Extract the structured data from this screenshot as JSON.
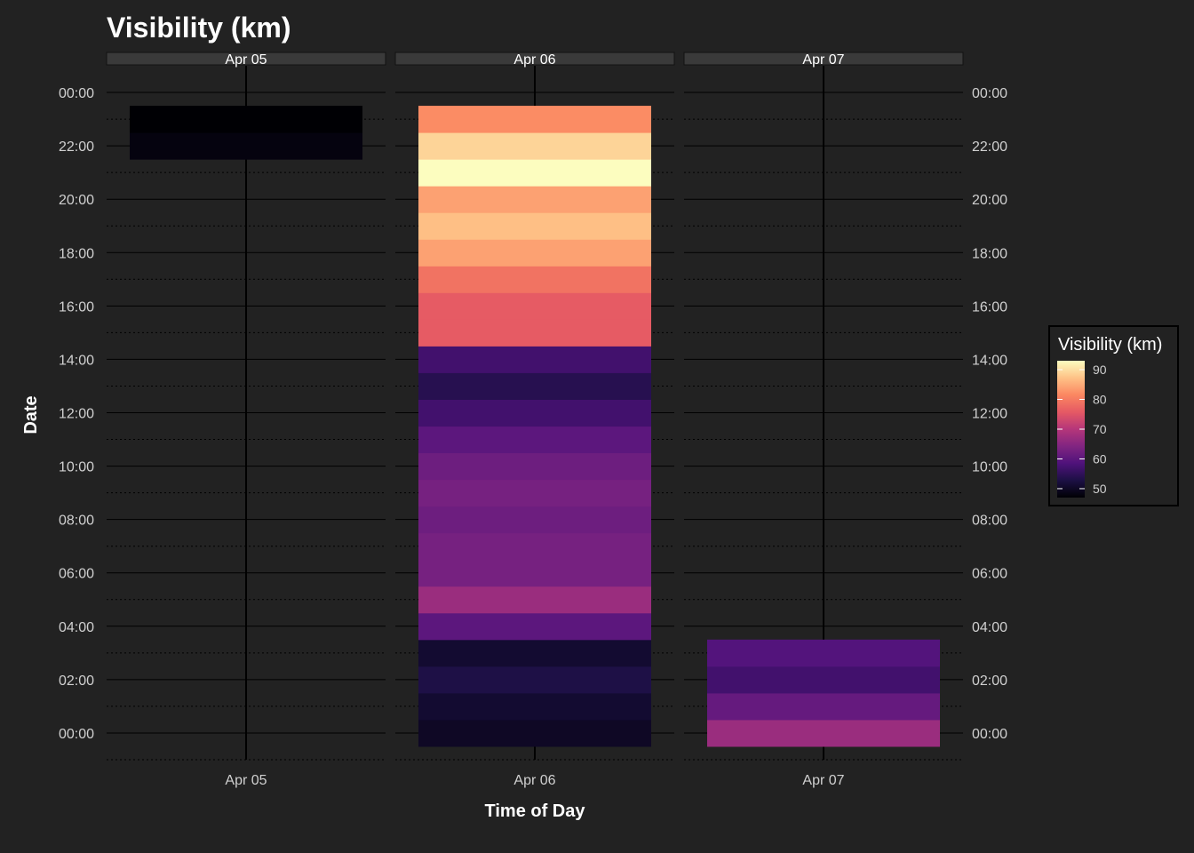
{
  "chart_data": {
    "type": "heatmap",
    "title": "Visibility (km)",
    "xlabel": "Time of Day",
    "ylabel": "Date",
    "facets": [
      "Apr 05",
      "Apr 06",
      "Apr 07"
    ],
    "y_ticks": [
      "00:00",
      "02:00",
      "04:00",
      "06:00",
      "08:00",
      "10:00",
      "12:00",
      "14:00",
      "16:00",
      "18:00",
      "20:00",
      "22:00",
      "00:00"
    ],
    "y_range_hours": [
      -1,
      25
    ],
    "grid": true,
    "legend": {
      "title": "Visibility (km)",
      "position": "right",
      "min": 47,
      "max": 93,
      "ticks": [
        50,
        60,
        70,
        80,
        90
      ]
    },
    "cells": [
      {
        "facet": "Apr 05",
        "hour": 22,
        "value": 48
      },
      {
        "facet": "Apr 05",
        "hour": 23,
        "value": 47
      },
      {
        "facet": "Apr 06",
        "hour": 0,
        "value": 50
      },
      {
        "facet": "Apr 06",
        "hour": 1,
        "value": 51
      },
      {
        "facet": "Apr 06",
        "hour": 2,
        "value": 53
      },
      {
        "facet": "Apr 06",
        "hour": 3,
        "value": 51
      },
      {
        "facet": "Apr 06",
        "hour": 4,
        "value": 60
      },
      {
        "facet": "Apr 06",
        "hour": 5,
        "value": 67
      },
      {
        "facet": "Apr 06",
        "hour": 6,
        "value": 63
      },
      {
        "facet": "Apr 06",
        "hour": 7,
        "value": 63
      },
      {
        "facet": "Apr 06",
        "hour": 8,
        "value": 62
      },
      {
        "facet": "Apr 06",
        "hour": 9,
        "value": 63
      },
      {
        "facet": "Apr 06",
        "hour": 10,
        "value": 62
      },
      {
        "facet": "Apr 06",
        "hour": 11,
        "value": 60
      },
      {
        "facet": "Apr 06",
        "hour": 12,
        "value": 57
      },
      {
        "facet": "Apr 06",
        "hour": 13,
        "value": 54
      },
      {
        "facet": "Apr 06",
        "hour": 14,
        "value": 57
      },
      {
        "facet": "Apr 06",
        "hour": 15,
        "value": 76
      },
      {
        "facet": "Apr 06",
        "hour": 16,
        "value": 76
      },
      {
        "facet": "Apr 06",
        "hour": 17,
        "value": 79
      },
      {
        "facet": "Apr 06",
        "hour": 18,
        "value": 84
      },
      {
        "facet": "Apr 06",
        "hour": 19,
        "value": 87
      },
      {
        "facet": "Apr 06",
        "hour": 20,
        "value": 84
      },
      {
        "facet": "Apr 06",
        "hour": 21,
        "value": 93
      },
      {
        "facet": "Apr 06",
        "hour": 22,
        "value": 89
      },
      {
        "facet": "Apr 06",
        "hour": 23,
        "value": 82
      },
      {
        "facet": "Apr 07",
        "hour": 0,
        "value": 67
      },
      {
        "facet": "Apr 07",
        "hour": 1,
        "value": 61
      },
      {
        "facet": "Apr 07",
        "hour": 2,
        "value": 57
      },
      {
        "facet": "Apr 07",
        "hour": 3,
        "value": 59
      }
    ]
  }
}
